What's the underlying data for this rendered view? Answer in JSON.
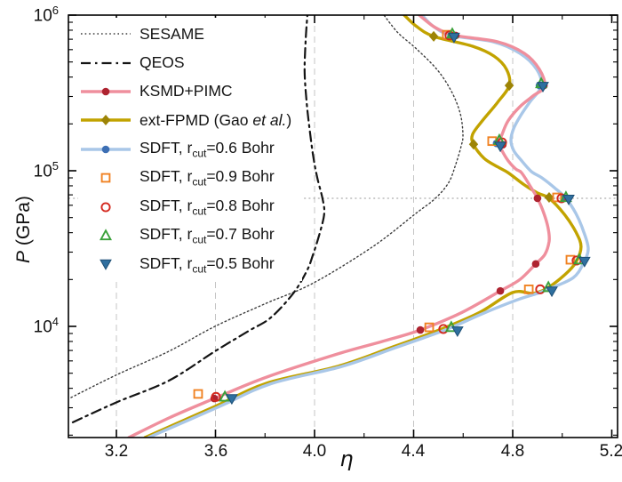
{
  "axes": {
    "x": {
      "label": "η",
      "ticks": [
        "3.2",
        "3.6",
        "4.0",
        "4.4",
        "4.8",
        "5.2"
      ],
      "tick_values": [
        3.2,
        3.6,
        4.0,
        4.4,
        4.8,
        5.2
      ],
      "minor_ticks": [
        3.4,
        3.8,
        4.2,
        4.6,
        5.0
      ],
      "range": [
        3.006,
        5.223
      ]
    },
    "y": {
      "label_italic": "P",
      "label_rest": " (GPa)",
      "ticks": [
        {
          "base": "10",
          "exp": "6"
        },
        {
          "base": "10",
          "exp": "5"
        },
        {
          "base": "10",
          "exp": "4"
        }
      ],
      "scale": "log",
      "range_log10": [
        3.286,
        6
      ]
    }
  },
  "legend": {
    "items": [
      {
        "label": {
          "pre": "SESAME"
        }
      },
      {
        "label": {
          "pre": "QEOS"
        }
      },
      {
        "label": {
          "pre": "KSMD+PIMC"
        }
      },
      {
        "label": {
          "pre": "ext-FPMD (Gao ",
          "italic": "et al.",
          "post": ")"
        }
      },
      {
        "label": {
          "pre": "SDFT, r",
          "sub": "cut",
          "post": "=0.6 Bohr"
        }
      },
      {
        "label": {
          "pre": "SDFT, r",
          "sub": "cut",
          "post": "=0.9 Bohr"
        }
      },
      {
        "label": {
          "pre": "SDFT, r",
          "sub": "cut",
          "post": "=0.8 Bohr"
        }
      },
      {
        "label": {
          "pre": "SDFT, r",
          "sub": "cut",
          "post": "=0.7 Bohr"
        }
      },
      {
        "label": {
          "pre": "SDFT, r",
          "sub": "cut",
          "post": "=0.5 Bohr"
        }
      }
    ]
  },
  "chart_data": {
    "type": "line",
    "xlabel": "η",
    "ylabel": "P (GPa)",
    "xlim": [
      3.006,
      5.223
    ],
    "ylim": [
      1930,
      1000000
    ],
    "y_scale": "log",
    "x_major_ticks": [
      3.2,
      3.6,
      4.0,
      4.4,
      4.8,
      5.2
    ],
    "x_minor_ticks": [
      3.4,
      3.8,
      4.2,
      4.6,
      5.0
    ],
    "y_major_ticks": [
      10000,
      100000,
      1000000
    ],
    "grid_x": [
      3.2,
      3.6,
      4.0,
      4.4,
      4.8
    ],
    "grid_color": "#c5c5c5",
    "refline_P": 66500,
    "refline_color": "#9a9a9a",
    "legend_position": "upper-left",
    "series": [
      {
        "id": "sesame",
        "name": "SESAME",
        "type": "line",
        "style": "dotted",
        "color": "#3c3c3c",
        "width": 1.4,
        "points": [
          [
            3.017,
            3490
          ],
          [
            3.204,
            4910
          ],
          [
            3.412,
            6920
          ],
          [
            3.598,
            10000
          ],
          [
            3.806,
            14100
          ],
          [
            3.993,
            18900
          ],
          [
            4.237,
            32700
          ],
          [
            4.409,
            53200
          ],
          [
            4.488,
            66500
          ],
          [
            4.542,
            84300
          ],
          [
            4.57,
            110000
          ],
          [
            4.592,
            144000
          ],
          [
            4.599,
            171000
          ],
          [
            4.588,
            234000
          ],
          [
            4.552,
            325000
          ],
          [
            4.495,
            446000
          ],
          [
            4.409,
            612000
          ],
          [
            4.337,
            770000
          ],
          [
            4.28,
            1000000
          ]
        ]
      },
      {
        "id": "qeos",
        "name": "QEOS",
        "type": "line",
        "style": "dashdot",
        "color": "#141414",
        "width": 2.2,
        "points": [
          [
            3.024,
            2420
          ],
          [
            3.204,
            3270
          ],
          [
            3.412,
            4480
          ],
          [
            3.598,
            6920
          ],
          [
            3.735,
            9360
          ],
          [
            3.824,
            11400
          ],
          [
            3.914,
            16300
          ],
          [
            3.968,
            22600
          ],
          [
            3.993,
            28600
          ],
          [
            4.021,
            39800
          ],
          [
            4.039,
            53200
          ],
          [
            4.032,
            66500
          ],
          [
            4.011,
            90000
          ],
          [
            3.996,
            120000
          ],
          [
            3.982,
            174000
          ],
          [
            3.968,
            275000
          ],
          [
            3.96,
            437000
          ],
          [
            3.964,
            692000
          ],
          [
            3.971,
            1000000
          ]
        ]
      },
      {
        "id": "fpmd",
        "name": "ext-FPMD (Gao et al.)",
        "type": "line+marker",
        "style": "solid",
        "color": "#c2a300",
        "width": 3.4,
        "marker": {
          "shape": "diamond",
          "color": "#9d8406"
        },
        "points": [
          [
            3.315,
            1930
          ],
          [
            3.598,
            3060
          ],
          [
            3.806,
            4310
          ],
          [
            4.093,
            5530
          ],
          [
            4.309,
            7300
          ],
          [
            4.513,
            9620
          ],
          [
            4.667,
            12300
          ],
          [
            4.8,
            16500
          ],
          [
            4.883,
            16300
          ],
          [
            4.944,
            17800
          ],
          [
            5.012,
            21600
          ],
          [
            5.055,
            25800
          ],
          [
            5.076,
            32500
          ],
          [
            5.055,
            40400
          ],
          [
            5.008,
            52600
          ],
          [
            4.947,
            66500
          ],
          [
            4.9,
            72000
          ],
          [
            4.847,
            81100
          ],
          [
            4.782,
            97000
          ],
          [
            4.739,
            106000
          ],
          [
            4.685,
            120000
          ],
          [
            4.642,
            147000
          ],
          [
            4.638,
            171000
          ],
          [
            4.678,
            210000
          ],
          [
            4.739,
            275000
          ],
          [
            4.786,
            353000
          ],
          [
            4.775,
            448000
          ],
          [
            4.724,
            546000
          ],
          [
            4.638,
            631000
          ],
          [
            4.481,
            730000
          ],
          [
            4.409,
            853000
          ],
          [
            4.362,
            1000000
          ]
        ],
        "marker_points": [
          [
            4.481,
            730000
          ],
          [
            4.786,
            353000
          ],
          [
            4.642,
            148000
          ],
          [
            4.947,
            67400
          ]
        ]
      },
      {
        "id": "sdft06",
        "name": "SDFT, rcut=0.6 Bohr",
        "type": "line+marker",
        "style": "solid",
        "color": "#a9c7e8",
        "width": 3.4,
        "marker": {
          "shape": "dot",
          "color": "#3d6fb4"
        },
        "points": [
          [
            3.329,
            1930
          ],
          [
            3.609,
            3020
          ],
          [
            3.824,
            4280
          ],
          [
            4.111,
            5530
          ],
          [
            4.327,
            7300
          ],
          [
            4.527,
            9480
          ],
          [
            4.685,
            12200
          ],
          [
            4.818,
            14800
          ],
          [
            4.9,
            16300
          ],
          [
            4.961,
            17800
          ],
          [
            5.044,
            20500
          ],
          [
            5.083,
            25000
          ],
          [
            5.105,
            31500
          ],
          [
            5.083,
            42000
          ],
          [
            5.055,
            53200
          ],
          [
            5.015,
            66500
          ],
          [
            4.972,
            77000
          ],
          [
            4.918,
            90000
          ],
          [
            4.875,
            99000
          ],
          [
            4.832,
            118000
          ],
          [
            4.804,
            135000
          ],
          [
            4.793,
            157000
          ],
          [
            4.804,
            187000
          ],
          [
            4.832,
            226000
          ],
          [
            4.868,
            275000
          ],
          [
            4.915,
            349000
          ],
          [
            4.897,
            448000
          ],
          [
            4.829,
            568000
          ],
          [
            4.721,
            674000
          ],
          [
            4.552,
            740000
          ],
          [
            4.477,
            853000
          ],
          [
            4.434,
            1000000
          ]
        ],
        "marker_points": [
          [
            4.552,
            740000
          ],
          [
            4.908,
            353000
          ],
          [
            5.008,
            66500
          ],
          [
            4.735,
            150000
          ]
        ]
      },
      {
        "id": "ksmd",
        "name": "KSMD+PIMC",
        "type": "line+marker",
        "style": "solid",
        "color": "#ef8f9d",
        "width": 3.4,
        "marker": {
          "shape": "dot",
          "color": "#ae2330"
        },
        "points": [
          [
            3.25,
            1930
          ],
          [
            3.412,
            2580
          ],
          [
            3.595,
            3440
          ],
          [
            3.806,
            4720
          ],
          [
            4.093,
            6650
          ],
          [
            4.273,
            8000
          ],
          [
            4.427,
            9480
          ],
          [
            4.595,
            12300
          ],
          [
            4.75,
            16900
          ],
          [
            4.829,
            20000
          ],
          [
            4.893,
            25200
          ],
          [
            4.93,
            29000
          ],
          [
            4.947,
            35200
          ],
          [
            4.944,
            42000
          ],
          [
            4.926,
            53200
          ],
          [
            4.9,
            66500
          ],
          [
            4.872,
            78900
          ],
          [
            4.836,
            97000
          ],
          [
            4.811,
            103000
          ],
          [
            4.775,
            120000
          ],
          [
            4.746,
            150000
          ],
          [
            4.757,
            171000
          ],
          [
            4.782,
            210000
          ],
          [
            4.829,
            258000
          ],
          [
            4.883,
            303000
          ],
          [
            4.929,
            349000
          ],
          [
            4.908,
            448000
          ],
          [
            4.847,
            568000
          ],
          [
            4.739,
            674000
          ],
          [
            4.57,
            740000
          ],
          [
            4.488,
            832000
          ],
          [
            4.423,
            1000000
          ]
        ],
        "marker_points": [
          [
            3.595,
            3440
          ],
          [
            4.427,
            9480
          ],
          [
            4.75,
            16900
          ],
          [
            4.893,
            25200
          ],
          [
            4.76,
            147000
          ],
          [
            4.9,
            66500
          ],
          [
            4.926,
            353000
          ],
          [
            4.57,
            740000
          ]
        ]
      },
      {
        "id": "sdft09",
        "name": "SDFT, rcut=0.9 Bohr",
        "type": "scatter",
        "marker": {
          "shape": "square",
          "color": "#f08222"
        },
        "points": [
          [
            3.53,
            3680
          ],
          [
            4.463,
            9860
          ],
          [
            4.717,
            155000
          ],
          [
            4.865,
            17300
          ],
          [
            4.979,
            67400
          ],
          [
            5.033,
            26800
          ],
          [
            4.534,
            748000
          ]
        ]
      },
      {
        "id": "sdft08",
        "name": "SDFT, rcut=0.8 Bohr",
        "type": "scatter",
        "marker": {
          "shape": "circle",
          "color": "#d4281e"
        },
        "points": [
          [
            3.602,
            3520
          ],
          [
            4.52,
            9620
          ],
          [
            4.757,
            152000
          ],
          [
            4.911,
            17300
          ],
          [
            4.997,
            66500
          ],
          [
            5.058,
            26500
          ],
          [
            4.545,
            740000
          ]
        ]
      },
      {
        "id": "sdft07",
        "name": "SDFT, rcut=0.7 Bohr",
        "type": "scatter",
        "marker": {
          "shape": "tri-up",
          "color": "#3aa13a"
        },
        "points": [
          [
            3.638,
            3520
          ],
          [
            4.552,
            9860
          ],
          [
            4.746,
            157000
          ],
          [
            4.944,
            17800
          ],
          [
            5.015,
            67400
          ],
          [
            5.069,
            26800
          ],
          [
            4.915,
            363000
          ],
          [
            4.556,
            757000
          ]
        ]
      },
      {
        "id": "sdft05",
        "name": "SDFT, rcut=0.5 Bohr",
        "type": "scatter",
        "marker": {
          "shape": "tri-down",
          "color": "#2f6f9f",
          "edge": "#1d4f75"
        },
        "points": [
          [
            3.666,
            3440
          ],
          [
            4.577,
            9360
          ],
          [
            4.75,
            144000
          ],
          [
            4.958,
            16900
          ],
          [
            5.026,
            65700
          ],
          [
            5.09,
            26200
          ],
          [
            4.922,
            349000
          ],
          [
            4.563,
            722000
          ]
        ]
      }
    ]
  }
}
